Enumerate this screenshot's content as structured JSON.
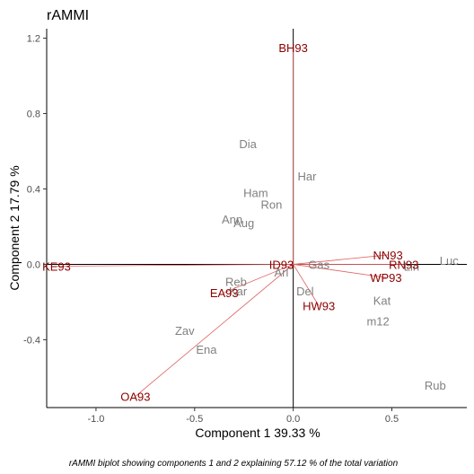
{
  "chart_data": {
    "type": "scatter",
    "title": "rAMMI",
    "xlabel": "Component 1 39.33 %",
    "ylabel": "Component 2 17.79 %",
    "caption": "rAMMI biplot showing components 1 and 2 explaining  57.12 % of the total variation",
    "xlim": [
      -1.25,
      0.88
    ],
    "ylim": [
      -0.76,
      1.25
    ],
    "xticks": [
      -1.0,
      -0.5,
      0.0,
      0.5
    ],
    "xtick_labels": [
      "-1.0",
      "-0.5",
      "0.0",
      "0.5"
    ],
    "yticks": [
      -0.4,
      0.0,
      0.4,
      0.8,
      1.2
    ],
    "ytick_labels": [
      "-0.4",
      "0.0",
      "0.4",
      "0.8",
      "1.2"
    ],
    "colors": {
      "genotype": "#808080",
      "environment": "#8b0000",
      "vector": "#e06060",
      "axis": "#000000",
      "reference": "#000000"
    },
    "genotypes": [
      {
        "label": "Dia",
        "x": -0.23,
        "y": 0.64
      },
      {
        "label": "Har",
        "x": 0.07,
        "y": 0.47
      },
      {
        "label": "Ham",
        "x": -0.19,
        "y": 0.38
      },
      {
        "label": "Ron",
        "x": -0.11,
        "y": 0.32
      },
      {
        "label": "Ann",
        "x": -0.31,
        "y": 0.24
      },
      {
        "label": "Aug",
        "x": -0.25,
        "y": 0.22
      },
      {
        "label": "Gas",
        "x": 0.13,
        "y": 0.0
      },
      {
        "label": "Luc",
        "x": 0.79,
        "y": 0.02
      },
      {
        "label": "Lin",
        "x": 0.6,
        "y": -0.01
      },
      {
        "label": "Arl",
        "x": -0.06,
        "y": -0.04
      },
      {
        "label": "Reb",
        "x": -0.29,
        "y": -0.09
      },
      {
        "label": "Kar",
        "x": -0.28,
        "y": -0.14
      },
      {
        "label": "Del",
        "x": 0.06,
        "y": -0.14
      },
      {
        "label": "Kat",
        "x": 0.45,
        "y": -0.19
      },
      {
        "label": "m12",
        "x": 0.43,
        "y": -0.3
      },
      {
        "label": "Zav",
        "x": -0.55,
        "y": -0.35
      },
      {
        "label": "Ena",
        "x": -0.44,
        "y": -0.45
      },
      {
        "label": "Rub",
        "x": 0.72,
        "y": -0.64
      }
    ],
    "environments": [
      {
        "label": "BH93",
        "x": 0.0,
        "y": 1.15
      },
      {
        "label": "KE93",
        "x": -1.2,
        "y": -0.01
      },
      {
        "label": "ID93",
        "x": -0.06,
        "y": 0.0
      },
      {
        "label": "NN93",
        "x": 0.48,
        "y": 0.05
      },
      {
        "label": "RN93",
        "x": 0.56,
        "y": 0.0
      },
      {
        "label": "WP93",
        "x": 0.47,
        "y": -0.07
      },
      {
        "label": "EA93",
        "x": -0.35,
        "y": -0.15
      },
      {
        "label": "HW93",
        "x": 0.13,
        "y": -0.22
      },
      {
        "label": "OA93",
        "x": -0.8,
        "y": -0.7
      }
    ]
  }
}
